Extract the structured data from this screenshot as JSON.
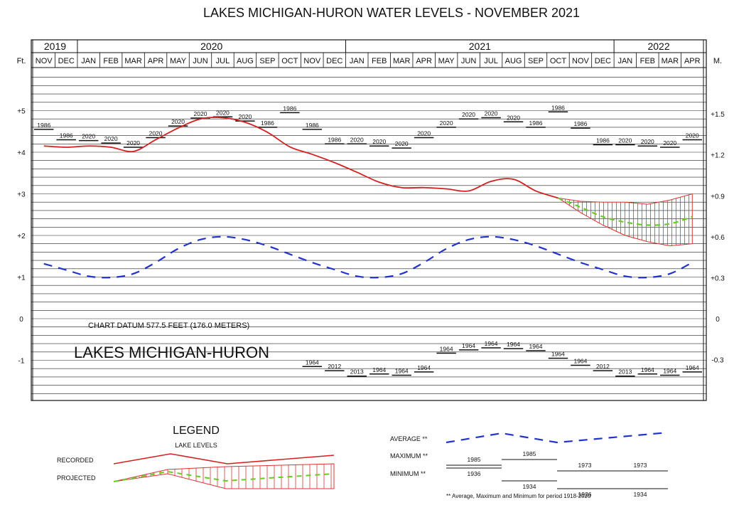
{
  "title": "LAKES MICHIGAN-HURON WATER LEVELS - NOVEMBER 2021",
  "chart_data": {
    "type": "line",
    "title": "LAKES MICHIGAN-HURON WATER LEVELS - NOVEMBER 2021",
    "years": [
      {
        "label": "2019",
        "start": 0,
        "months": 2
      },
      {
        "label": "2020",
        "start": 2,
        "months": 12
      },
      {
        "label": "2021",
        "start": 14,
        "months": 12
      },
      {
        "label": "2022",
        "start": 26,
        "months": 4
      }
    ],
    "left_axis_label": "Ft.",
    "right_axis_label": "M.",
    "months": [
      "NOV",
      "DEC",
      "JAN",
      "FEB",
      "MAR",
      "APR",
      "MAY",
      "JUN",
      "JUL",
      "AUG",
      "SEP",
      "OCT",
      "NOV",
      "DEC",
      "JAN",
      "FEB",
      "MAR",
      "APR",
      "MAY",
      "JUN",
      "JUL",
      "AUG",
      "SEP",
      "OCT",
      "NOV",
      "DEC",
      "JAN",
      "FEB",
      "MAR",
      "APR"
    ],
    "ylim": [
      -2,
      6
    ],
    "ft_ticks": [
      {
        "v": 5,
        "label": "+5"
      },
      {
        "v": 4,
        "label": "+4"
      },
      {
        "v": 3,
        "label": "+3"
      },
      {
        "v": 2,
        "label": "+2"
      },
      {
        "v": 1,
        "label": "+1"
      },
      {
        "v": 0,
        "label": "0"
      },
      {
        "v": -1,
        "label": "-1"
      }
    ],
    "m_ticks": [
      {
        "v": 4.92,
        "label": "+1.5"
      },
      {
        "v": 3.94,
        "label": "+1.2"
      },
      {
        "v": 2.95,
        "label": "+0.9"
      },
      {
        "v": 1.97,
        "label": "+0.6"
      },
      {
        "v": 0.98,
        "label": "+0.3"
      },
      {
        "v": 0,
        "label": "0"
      },
      {
        "v": -0.98,
        "label": "-0.3"
      }
    ],
    "recorded": {
      "x": [
        0,
        1,
        2,
        3,
        4,
        5,
        6,
        7,
        8,
        9,
        10,
        11,
        12,
        13,
        14,
        15,
        16,
        17,
        18,
        19,
        20,
        21,
        22,
        23
      ],
      "y": [
        4.15,
        4.12,
        4.15,
        4.12,
        4.02,
        4.3,
        4.58,
        4.8,
        4.83,
        4.72,
        4.48,
        4.13,
        3.95,
        3.75,
        3.52,
        3.28,
        3.15,
        3.15,
        3.12,
        3.07,
        3.3,
        3.35,
        3.07,
        2.9
      ]
    },
    "projected": {
      "x": [
        23,
        24,
        25,
        26,
        27,
        28,
        29
      ],
      "y": [
        2.9,
        2.68,
        2.45,
        2.32,
        2.25,
        2.28,
        2.45
      ]
    },
    "projected_range": {
      "x": [
        23,
        24,
        25,
        26,
        27,
        28,
        29
      ],
      "upper": [
        2.9,
        2.82,
        2.8,
        2.8,
        2.75,
        2.85,
        3.0
      ],
      "lower": [
        2.9,
        2.55,
        2.25,
        2.0,
        1.85,
        1.75,
        1.8
      ]
    },
    "average": {
      "x": [
        0,
        1,
        2,
        3,
        4,
        5,
        6,
        7,
        8,
        9,
        10,
        11,
        12,
        13,
        14,
        15,
        16,
        17,
        18,
        19,
        20,
        21,
        22,
        23,
        24,
        25,
        26,
        27,
        28,
        29
      ],
      "y": [
        1.32,
        1.17,
        1.02,
        0.99,
        1.08,
        1.35,
        1.68,
        1.9,
        1.97,
        1.9,
        1.75,
        1.55,
        1.35,
        1.18,
        1.02,
        0.99,
        1.08,
        1.35,
        1.68,
        1.9,
        1.97,
        1.9,
        1.75,
        1.55,
        1.35,
        1.18,
        1.02,
        0.99,
        1.08,
        1.35
      ]
    },
    "maximums": [
      {
        "m": 0,
        "y": 4.55,
        "year": "1986"
      },
      {
        "m": 1,
        "y": 4.3,
        "year": "1986"
      },
      {
        "m": 2,
        "y": 4.28,
        "year": "2020"
      },
      {
        "m": 3,
        "y": 4.22,
        "year": "2020"
      },
      {
        "m": 4,
        "y": 4.12,
        "year": "2020"
      },
      {
        "m": 5,
        "y": 4.35,
        "year": "2020"
      },
      {
        "m": 6,
        "y": 4.63,
        "year": "2020"
      },
      {
        "m": 7,
        "y": 4.82,
        "year": "2020"
      },
      {
        "m": 8,
        "y": 4.85,
        "year": "2020"
      },
      {
        "m": 9,
        "y": 4.75,
        "year": "2020"
      },
      {
        "m": 10,
        "y": 4.6,
        "year": "1986"
      },
      {
        "m": 11,
        "y": 4.95,
        "year": "1986"
      },
      {
        "m": 12,
        "y": 4.55,
        "year": "1986"
      },
      {
        "m": 13,
        "y": 4.2,
        "year": "1986"
      },
      {
        "m": 14,
        "y": 4.2,
        "year": "2020"
      },
      {
        "m": 15,
        "y": 4.15,
        "year": "2020"
      },
      {
        "m": 16,
        "y": 4.1,
        "year": "2020"
      },
      {
        "m": 17,
        "y": 4.35,
        "year": "2020"
      },
      {
        "m": 18,
        "y": 4.6,
        "year": "2020"
      },
      {
        "m": 19,
        "y": 4.8,
        "year": "2020"
      },
      {
        "m": 20,
        "y": 4.83,
        "year": "2020"
      },
      {
        "m": 21,
        "y": 4.73,
        "year": "2020"
      },
      {
        "m": 22,
        "y": 4.6,
        "year": "1986"
      },
      {
        "m": 23,
        "y": 4.97,
        "year": "1986"
      },
      {
        "m": 24,
        "y": 4.58,
        "year": "1986"
      },
      {
        "m": 25,
        "y": 4.18,
        "year": "1986"
      },
      {
        "m": 26,
        "y": 4.18,
        "year": "2020"
      },
      {
        "m": 27,
        "y": 4.15,
        "year": "2020"
      },
      {
        "m": 28,
        "y": 4.12,
        "year": "2020"
      },
      {
        "m": 29,
        "y": 4.3,
        "year": "2020"
      }
    ],
    "minimums": [
      {
        "m": 12,
        "y": -1.15,
        "year": "1964"
      },
      {
        "m": 13,
        "y": -1.25,
        "year": "2012"
      },
      {
        "m": 14,
        "y": -1.38,
        "year": "2013"
      },
      {
        "m": 15,
        "y": -1.33,
        "year": "1964"
      },
      {
        "m": 16,
        "y": -1.36,
        "year": "1964"
      },
      {
        "m": 17,
        "y": -1.28,
        "year": "1964"
      },
      {
        "m": 18,
        "y": -0.83,
        "year": "1964"
      },
      {
        "m": 19,
        "y": -0.75,
        "year": "1964"
      },
      {
        "m": 20,
        "y": -0.7,
        "year": "1964"
      },
      {
        "m": 21,
        "y": -0.72,
        "year": "1964"
      },
      {
        "m": 22,
        "y": -0.77,
        "year": "1964"
      },
      {
        "m": 23,
        "y": -0.95,
        "year": "1964"
      },
      {
        "m": 24,
        "y": -1.12,
        "year": "1964"
      },
      {
        "m": 25,
        "y": -1.25,
        "year": "2012"
      },
      {
        "m": 26,
        "y": -1.38,
        "year": "2013"
      },
      {
        "m": 27,
        "y": -1.33,
        "year": "1964"
      },
      {
        "m": 28,
        "y": -1.36,
        "year": "1964"
      },
      {
        "m": 29,
        "y": -1.28,
        "year": "1964"
      }
    ],
    "annotations": {
      "datum": "CHART DATUM 577.5 FEET (176.0 METERS)",
      "lake_name": "LAKES MICHIGAN-HURON"
    },
    "grid": true
  },
  "legend": {
    "title": "LEGEND",
    "subtitle": "LAKE LEVELS",
    "recorded_label": "RECORDED",
    "projected_label": "PROJECTED",
    "average_label": "AVERAGE **",
    "maximum_label": "MAXIMUM **",
    "minimum_label": "MINIMUM **",
    "max_years": [
      "1985",
      "1985",
      "1973",
      "1973"
    ],
    "min_years": [
      "1936",
      "1934",
      "1926",
      "1934"
    ],
    "footnote": "** Average, Maximum and Minimum for period 1918-2020"
  },
  "colors": {
    "recorded": "#d42020",
    "average": "#2233cc",
    "projected": "#66cc22",
    "range": "#dd3333"
  }
}
